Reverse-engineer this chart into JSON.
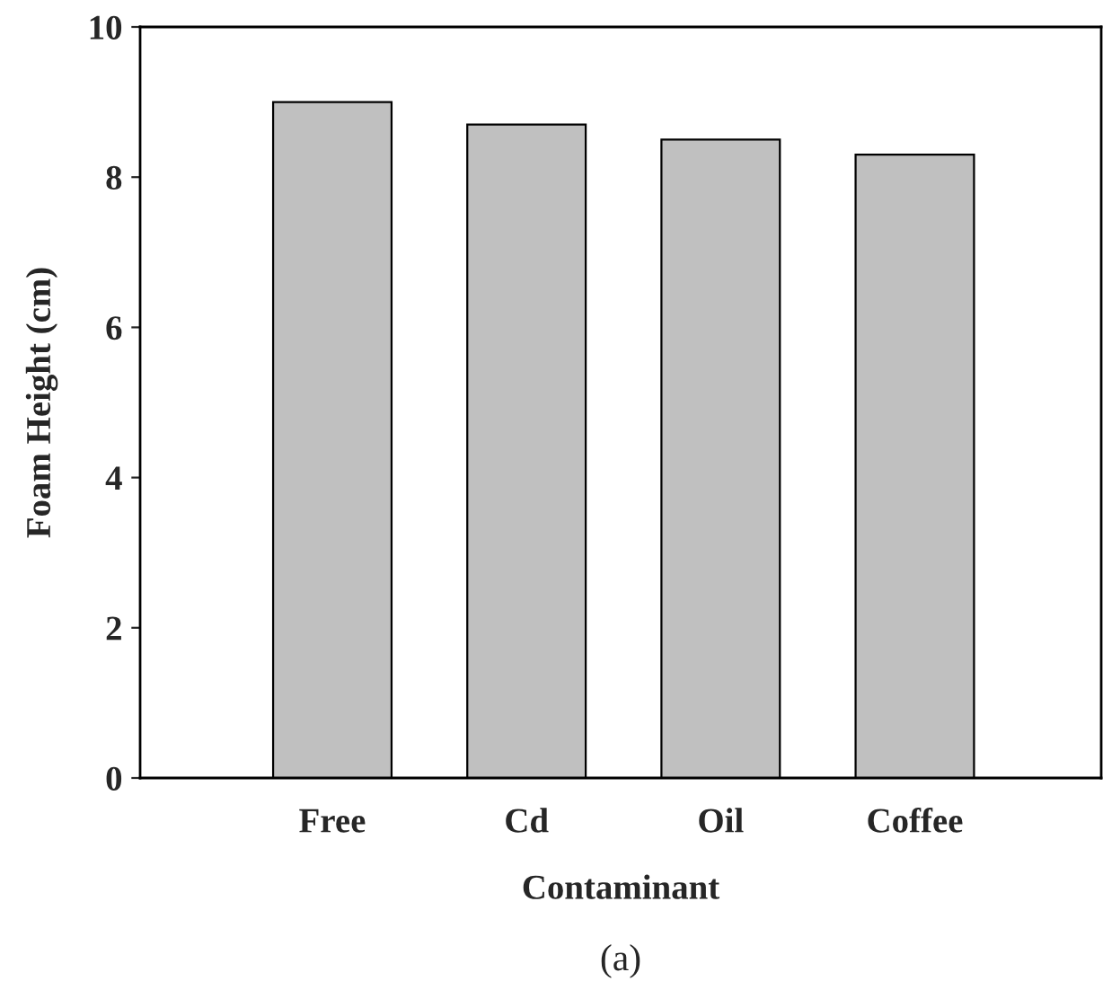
{
  "chart_data": {
    "type": "bar",
    "xlabel": "Contaminant",
    "ylabel": "Foam Height (cm)",
    "categories": [
      "Free",
      "Cd",
      "Oil",
      "Coffee"
    ],
    "values": [
      9.0,
      8.7,
      8.5,
      8.3
    ],
    "color": "#c0c0c0",
    "ylim": [
      0,
      10
    ],
    "yticks": [
      0,
      2,
      4,
      6,
      8,
      10
    ],
    "grid": false,
    "annotations": [
      "(a)"
    ]
  }
}
